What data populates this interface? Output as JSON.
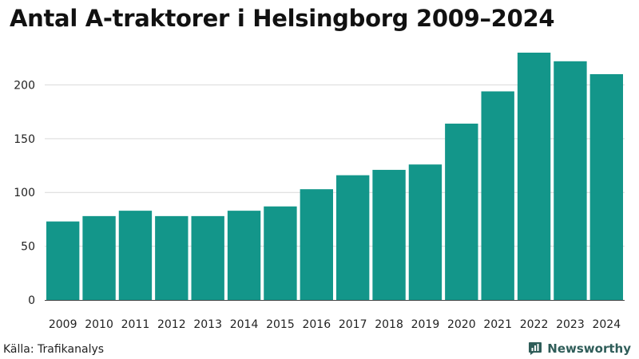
{
  "title": "Antal A-traktorer i Helsingborg 2009–2024",
  "source": "Källa: Trafikanalys",
  "brand": {
    "name": "Newsworthy",
    "logo_icon": "bar-chart-logo-icon"
  },
  "colors": {
    "bar": "#13968a",
    "grid": "#d9d9d9",
    "axis": "#444444",
    "brand": "#2f5d59"
  },
  "chart_data": {
    "type": "bar",
    "title": "Antal A-traktorer i Helsingborg 2009–2024",
    "xlabel": "",
    "ylabel": "",
    "categories": [
      "2009",
      "2010",
      "2011",
      "2012",
      "2013",
      "2014",
      "2015",
      "2016",
      "2017",
      "2018",
      "2019",
      "2020",
      "2021",
      "2022",
      "2023",
      "2024"
    ],
    "values": [
      73,
      78,
      83,
      78,
      78,
      83,
      87,
      103,
      116,
      121,
      126,
      164,
      194,
      230,
      222,
      210
    ],
    "ylim": [
      0,
      230
    ],
    "yticks": [
      0,
      50,
      100,
      150,
      200
    ],
    "grid": true,
    "legend": "none"
  }
}
